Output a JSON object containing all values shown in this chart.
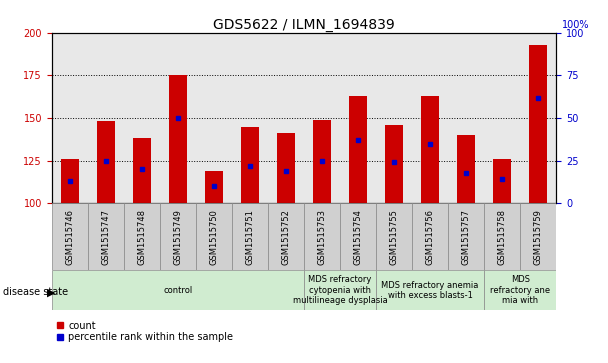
{
  "title": "GDS5622 / ILMN_1694839",
  "samples": [
    "GSM1515746",
    "GSM1515747",
    "GSM1515748",
    "GSM1515749",
    "GSM1515750",
    "GSM1515751",
    "GSM1515752",
    "GSM1515753",
    "GSM1515754",
    "GSM1515755",
    "GSM1515756",
    "GSM1515757",
    "GSM1515758",
    "GSM1515759"
  ],
  "counts": [
    126,
    148,
    138,
    175,
    119,
    145,
    141,
    149,
    163,
    146,
    163,
    140,
    126,
    193
  ],
  "percentile_ranks": [
    13,
    25,
    20,
    50,
    10,
    22,
    19,
    25,
    37,
    24,
    35,
    18,
    14,
    62
  ],
  "ylim_left": [
    100,
    200
  ],
  "ylim_right": [
    0,
    100
  ],
  "yticks_left": [
    100,
    125,
    150,
    175,
    200
  ],
  "yticks_right": [
    0,
    25,
    50,
    75,
    100
  ],
  "bar_color": "#cc0000",
  "dot_color": "#0000cc",
  "disease_groups": [
    {
      "label": "control",
      "start": 0,
      "end": 7
    },
    {
      "label": "MDS refractory\ncytopenia with\nmultilineage dysplasia",
      "start": 7,
      "end": 9
    },
    {
      "label": "MDS refractory anemia\nwith excess blasts-1",
      "start": 9,
      "end": 12
    },
    {
      "label": "MDS\nrefractory ane\nmia with",
      "start": 12,
      "end": 14
    }
  ],
  "disease_state_label": "disease state",
  "legend_count_label": "count",
  "legend_percentile_label": "percentile rank within the sample",
  "background_color": "#ffffff",
  "plot_bg_color": "#e8e8e8",
  "sample_bg_color": "#d0d0d0",
  "disease_group_color": "#d0ecd0",
  "bar_width": 0.5,
  "title_fontsize": 10,
  "tick_fontsize": 7,
  "label_fontsize": 7,
  "strip_fontsize": 6
}
